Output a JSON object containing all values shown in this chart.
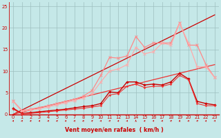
{
  "x": [
    0,
    1,
    2,
    3,
    4,
    5,
    6,
    7,
    8,
    9,
    10,
    11,
    12,
    13,
    14,
    15,
    16,
    17,
    18,
    19,
    20,
    21,
    22,
    23
  ],
  "line_darkred1": [
    1.4,
    0.2,
    0.4,
    0.6,
    0.8,
    1.0,
    1.2,
    1.5,
    1.8,
    2.0,
    2.5,
    5.2,
    5.0,
    7.5,
    7.5,
    6.8,
    7.0,
    6.8,
    7.5,
    9.5,
    8.2,
    3.0,
    2.5,
    2.2
  ],
  "line_darkred2": [
    1.2,
    0.1,
    0.2,
    0.4,
    0.6,
    0.8,
    1.0,
    1.2,
    1.4,
    1.7,
    2.0,
    4.5,
    4.8,
    6.5,
    7.0,
    6.2,
    6.5,
    6.5,
    7.0,
    9.0,
    8.0,
    2.5,
    2.0,
    2.0
  ],
  "line_pink1": [
    3.1,
    0.9,
    1.2,
    1.6,
    2.0,
    2.5,
    3.0,
    3.5,
    4.2,
    5.5,
    9.0,
    13.2,
    13.0,
    13.5,
    18.0,
    15.5,
    16.5,
    16.5,
    16.5,
    21.2,
    16.0,
    16.0,
    11.5,
    8.5
  ],
  "line_pink2": [
    3.0,
    0.7,
    1.0,
    1.3,
    1.7,
    2.2,
    2.7,
    3.2,
    3.8,
    4.8,
    7.5,
    10.0,
    10.5,
    11.5,
    15.5,
    14.0,
    14.5,
    16.5,
    16.0,
    21.0,
    16.5,
    11.0,
    11.0,
    8.5
  ],
  "diag1_slope": 1.0,
  "diag2_slope": 0.5,
  "background_color": "#c5e8e8",
  "grid_color": "#9dbfbf",
  "color_dark_red": "#cc0000",
  "color_red": "#ee3333",
  "color_pink1": "#ff8888",
  "color_pink2": "#ffaaaa",
  "ylim": [
    0,
    26
  ],
  "xlim": [
    -0.5,
    23.5
  ],
  "yticks": [
    0,
    5,
    10,
    15,
    20,
    25
  ],
  "xticks": [
    0,
    1,
    2,
    3,
    4,
    5,
    6,
    7,
    8,
    9,
    10,
    11,
    12,
    13,
    14,
    15,
    16,
    17,
    18,
    19,
    20,
    21,
    22,
    23
  ],
  "xlabel": "Vent moyen/en rafales  ( km/h )",
  "tick_fontsize": 4.8,
  "xlabel_fontsize": 5.8
}
